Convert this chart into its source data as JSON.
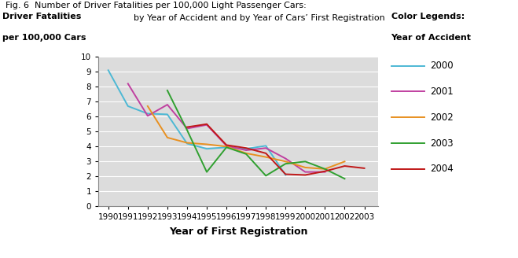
{
  "title_line1": "Fig. 6  Number of Driver Fatalities per 100,000 Light Passenger Cars:",
  "title_line2": "by Year of Accident and by Year of Cars’ First Registration",
  "ylabel_line1": "Driver Fatalities",
  "ylabel_line2": "per 100,000 Cars",
  "xlabel": "Year of First Registration",
  "legend_title_line1": "Color Legends:",
  "legend_title_line2": "Year of Accident",
  "ylim": [
    0,
    10
  ],
  "xlim": [
    1989.5,
    2003.7
  ],
  "yticks": [
    0,
    1,
    2,
    3,
    4,
    5,
    6,
    7,
    8,
    9,
    10
  ],
  "xticks": [
    1990,
    1991,
    1992,
    1993,
    1994,
    1995,
    1996,
    1997,
    1998,
    1999,
    2000,
    2001,
    2002,
    2003
  ],
  "background_color": "#dcdcdc",
  "series": [
    {
      "label": "2000",
      "color": "#4db8d4",
      "x": [
        1990,
        1991,
        1992,
        1993,
        1994,
        1995,
        1996,
        1997,
        1998,
        1999
      ],
      "y": [
        9.1,
        6.7,
        6.2,
        6.15,
        4.2,
        3.85,
        3.95,
        3.85,
        4.05,
        2.1
      ]
    },
    {
      "label": "2001",
      "color": "#c040a0",
      "x": [
        1991,
        1992,
        1993,
        1994,
        1995,
        1996,
        1997,
        1998,
        1999,
        2000,
        2001
      ],
      "y": [
        8.2,
        6.05,
        6.8,
        5.2,
        5.45,
        4.05,
        3.75,
        3.9,
        3.2,
        2.3,
        2.3
      ]
    },
    {
      "label": "2002",
      "color": "#e89020",
      "x": [
        1992,
        1993,
        1994,
        1995,
        1996,
        1997,
        1998,
        1999,
        2000,
        2001,
        2002
      ],
      "y": [
        6.7,
        4.6,
        4.25,
        4.15,
        4.0,
        3.55,
        3.3,
        3.0,
        2.6,
        2.5,
        3.0
      ]
    },
    {
      "label": "2003",
      "color": "#30a030",
      "x": [
        1993,
        1994,
        1995,
        1996,
        1997,
        1998,
        1999,
        2000,
        2001,
        2002
      ],
      "y": [
        7.75,
        5.1,
        2.3,
        3.95,
        3.5,
        2.05,
        2.85,
        3.0,
        2.5,
        1.85
      ]
    },
    {
      "label": "2004",
      "color": "#c01818",
      "x": [
        1994,
        1995,
        1996,
        1997,
        1998,
        1999,
        2000,
        2001,
        2002,
        2003
      ],
      "y": [
        5.3,
        5.5,
        4.1,
        3.9,
        3.55,
        2.15,
        2.1,
        2.35,
        2.7,
        2.55
      ]
    }
  ]
}
